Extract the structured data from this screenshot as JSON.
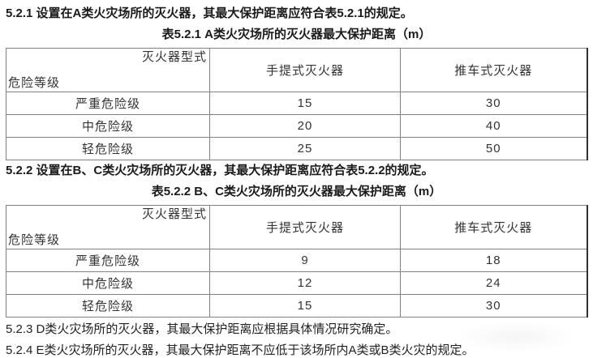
{
  "clauses": {
    "c521": "5.2.1 设置在A类火灾场所的灭火器，其最大保护距离应符合表5.2.1的规定。",
    "c522": "5.2.2 设置在B、C类火灾场所的灭火器，其最大保护距离应符合表5.2.2的规定。",
    "c523": "5.2.3 D类火灾场所的灭火器，其最大保护距离应根据具体情况研究确定。",
    "c524": "5.2.4 E类火灾场所的灭火器，其最大保护距离不应低于该场所内A类或B类火灾的规定。"
  },
  "tables": [
    {
      "caption": "表5.2.1 A类火灾场所的灭火器最大保护距离（m）",
      "header": {
        "corner_top": "灭火器型式",
        "corner_bottom": "危险等级",
        "columns": [
          "手提式灭火器",
          "推车式灭火器"
        ]
      },
      "rows": [
        {
          "label": "严重危险级",
          "values": [
            "15",
            "30"
          ]
        },
        {
          "label": "中危险级",
          "values": [
            "20",
            "40"
          ]
        },
        {
          "label": "轻危险级",
          "values": [
            "25",
            "50"
          ]
        }
      ]
    },
    {
      "caption": "表5.2.2 B、C类火灾场所的灭火器最大保护距离（m）",
      "header": {
        "corner_top": "灭火器型式",
        "corner_bottom": "危险等级",
        "columns": [
          "手提式灭火器",
          "推车式灭火器"
        ]
      },
      "rows": [
        {
          "label": "严重危险级",
          "values": [
            "9",
            "18"
          ]
        },
        {
          "label": "中危险级",
          "values": [
            "12",
            "24"
          ]
        },
        {
          "label": "轻危险级",
          "values": [
            "15",
            "30"
          ]
        }
      ]
    }
  ],
  "colors": {
    "border_inner": "#828282",
    "border_outer": "#5d5d5d",
    "heading_text": "#1a1a1a",
    "cell_text": "#333333",
    "background": "#ffffff"
  }
}
